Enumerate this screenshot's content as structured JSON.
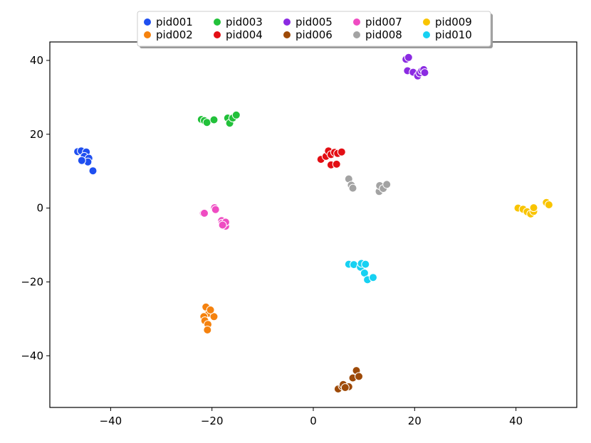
{
  "chart_data": {
    "type": "scatter",
    "title": "",
    "xlabel": "",
    "ylabel": "",
    "xlim": [
      -52,
      52
    ],
    "ylim": [
      -54,
      45
    ],
    "xticks": [
      -40,
      -20,
      0,
      20,
      40
    ],
    "yticks": [
      -40,
      -20,
      0,
      20,
      40
    ],
    "xtick_labels": [
      "−40",
      "−20",
      "0",
      "20",
      "40"
    ],
    "ytick_labels": [
      "−40",
      "−20",
      "0",
      "20",
      "40"
    ],
    "grid": false,
    "legend_placement": "top-center",
    "series": [
      {
        "name": "pid001",
        "color": "#1f4ff0",
        "points": [
          [
            -46.5,
            15.3
          ],
          [
            -45.8,
            15.5
          ],
          [
            -44.8,
            15.2
          ],
          [
            -45.2,
            14.0
          ],
          [
            -44.3,
            13.5
          ],
          [
            -44.5,
            12.5
          ],
          [
            -45.7,
            12.9
          ],
          [
            -43.5,
            10.1
          ]
        ]
      },
      {
        "name": "pid002",
        "color": "#f5820e",
        "points": [
          [
            -21.2,
            -26.8
          ],
          [
            -20.6,
            -28.5
          ],
          [
            -21.6,
            -29.4
          ],
          [
            -21.4,
            -30.5
          ],
          [
            -20.8,
            -31.5
          ],
          [
            -20.9,
            -33.0
          ],
          [
            -19.6,
            -29.4
          ],
          [
            -20.3,
            -27.6
          ]
        ]
      },
      {
        "name": "pid003",
        "color": "#22c13a",
        "points": [
          [
            -22.1,
            24.0
          ],
          [
            -21.5,
            23.7
          ],
          [
            -21.0,
            23.2
          ],
          [
            -19.6,
            23.9
          ],
          [
            -16.9,
            24.4
          ],
          [
            -16.5,
            23.0
          ],
          [
            -15.9,
            24.4
          ],
          [
            -15.2,
            25.2
          ]
        ]
      },
      {
        "name": "pid004",
        "color": "#e30e14",
        "points": [
          [
            1.5,
            13.2
          ],
          [
            2.5,
            14.0
          ],
          [
            3.0,
            15.5
          ],
          [
            3.5,
            14.5
          ],
          [
            4.2,
            15.1
          ],
          [
            4.8,
            14.8
          ],
          [
            5.6,
            15.2
          ],
          [
            3.5,
            11.7
          ],
          [
            4.6,
            11.9
          ]
        ]
      },
      {
        "name": "pid005",
        "color": "#8b2be2",
        "points": [
          [
            18.3,
            40.3
          ],
          [
            18.8,
            40.8
          ],
          [
            18.6,
            37.2
          ],
          [
            19.7,
            36.8
          ],
          [
            20.6,
            35.8
          ],
          [
            21.0,
            36.6
          ],
          [
            21.4,
            37.2
          ],
          [
            21.8,
            37.5
          ],
          [
            22.0,
            36.7
          ]
        ]
      },
      {
        "name": "pid006",
        "color": "#9e4a08",
        "points": [
          [
            4.9,
            -49.0
          ],
          [
            5.7,
            -48.2
          ],
          [
            5.9,
            -47.8
          ],
          [
            7.0,
            -48.4
          ],
          [
            7.8,
            -46.0
          ],
          [
            8.5,
            -44.0
          ],
          [
            9.0,
            -45.6
          ],
          [
            6.3,
            -48.6
          ]
        ]
      },
      {
        "name": "pid007",
        "color": "#ef4cc2",
        "points": [
          [
            -21.7,
            -1.4
          ],
          [
            -21.5,
            -1.4
          ],
          [
            -19.5,
            0.1
          ],
          [
            -19.3,
            -0.4
          ],
          [
            -18.1,
            -3.4
          ],
          [
            -18.0,
            -4.1
          ],
          [
            -17.3,
            -4.9
          ],
          [
            -17.3,
            -3.8
          ],
          [
            -17.9,
            -4.6
          ]
        ]
      },
      {
        "name": "pid008",
        "color": "#a3a3a3",
        "points": [
          [
            7.0,
            7.9
          ],
          [
            7.5,
            6.2
          ],
          [
            7.8,
            5.4
          ],
          [
            13.0,
            4.5
          ],
          [
            13.1,
            6.1
          ],
          [
            13.8,
            5.3
          ],
          [
            14.5,
            6.4
          ]
        ]
      },
      {
        "name": "pid009",
        "color": "#f9c400",
        "points": [
          [
            40.4,
            0.0
          ],
          [
            41.4,
            -0.3
          ],
          [
            42.2,
            -1.0
          ],
          [
            42.9,
            -1.6
          ],
          [
            43.5,
            -0.9
          ],
          [
            43.5,
            0.1
          ],
          [
            46.0,
            1.5
          ],
          [
            46.5,
            0.9
          ]
        ]
      },
      {
        "name": "pid010",
        "color": "#17d1f2",
        "points": [
          [
            7.0,
            -15.2
          ],
          [
            8.0,
            -15.3
          ],
          [
            9.3,
            -16.0
          ],
          [
            9.5,
            -15.0
          ],
          [
            10.3,
            -15.2
          ],
          [
            10.1,
            -17.6
          ],
          [
            10.7,
            -19.4
          ],
          [
            11.8,
            -18.8
          ]
        ]
      }
    ]
  }
}
